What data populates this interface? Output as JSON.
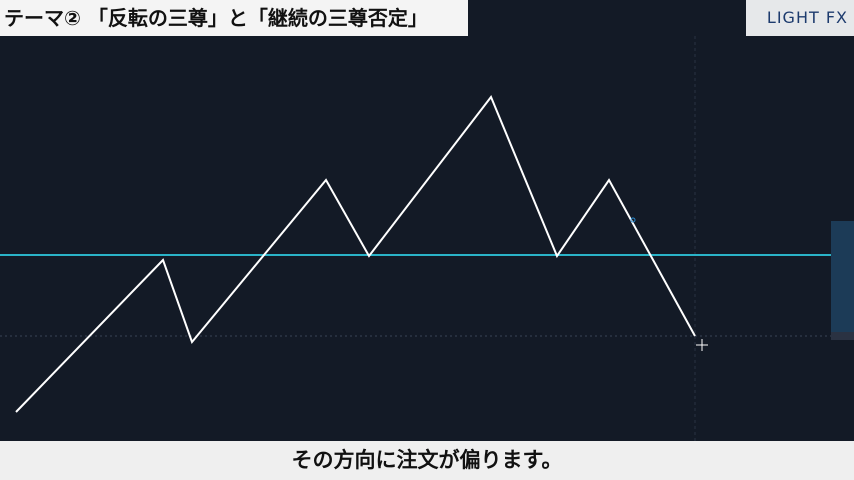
{
  "header": {
    "title": "テーマ② 「反転の三尊」と「継続の三尊否定」"
  },
  "logo": {
    "text": "LIGHT FX"
  },
  "caption": {
    "text": "その方向に注文が偏ります。"
  }
}
